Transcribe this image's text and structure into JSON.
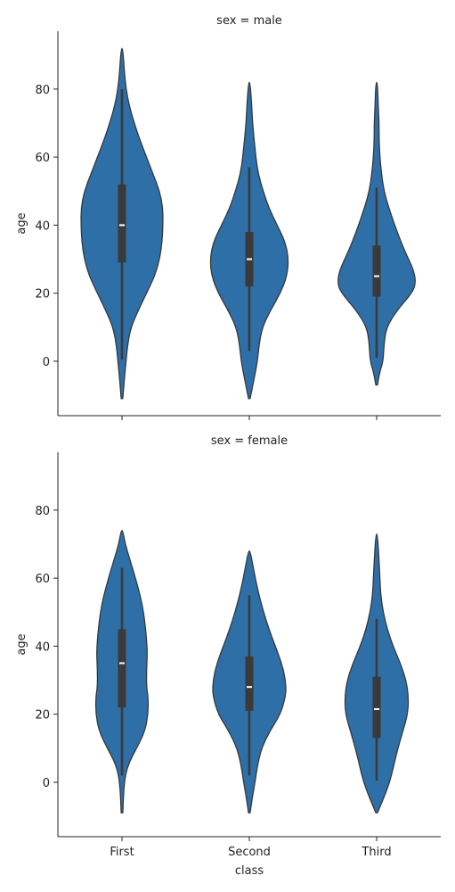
{
  "chart_data": {
    "type": "violin",
    "layout": "2 rows, shared x-axis",
    "categories": [
      "First",
      "Second",
      "Third"
    ],
    "xlabel": "class",
    "ylabel": "age",
    "yticks": [
      0,
      20,
      40,
      60,
      80
    ],
    "ylim": [
      -16,
      97
    ],
    "violin_color": "#2e6fa8",
    "edge_color": "#333333",
    "box_color": "#3a3a3a",
    "median_color": "#ffffff",
    "panels": [
      {
        "title": "sex = male",
        "violins": [
          {
            "category": "First",
            "min": -11,
            "max": 92,
            "q1": 29,
            "median": 40,
            "q3": 52,
            "whisker_low": 0.5,
            "whisker_high": 80,
            "profile": [
              [
                -11,
                0.01
              ],
              [
                -5,
                0.03
              ],
              [
                0,
                0.05
              ],
              [
                5,
                0.07
              ],
              [
                10,
                0.11
              ],
              [
                15,
                0.2
              ],
              [
                20,
                0.3
              ],
              [
                25,
                0.4
              ],
              [
                30,
                0.46
              ],
              [
                35,
                0.49
              ],
              [
                40,
                0.5
              ],
              [
                45,
                0.5
              ],
              [
                50,
                0.46
              ],
              [
                55,
                0.38
              ],
              [
                60,
                0.3
              ],
              [
                65,
                0.22
              ],
              [
                70,
                0.15
              ],
              [
                75,
                0.09
              ],
              [
                80,
                0.05
              ],
              [
                85,
                0.03
              ],
              [
                92,
                0.01
              ]
            ]
          },
          {
            "category": "Second",
            "min": -11,
            "max": 82,
            "q1": 22,
            "median": 30,
            "q3": 38,
            "whisker_low": 3,
            "whisker_high": 57,
            "profile": [
              [
                -11,
                0.01
              ],
              [
                -5,
                0.06
              ],
              [
                0,
                0.1
              ],
              [
                5,
                0.12
              ],
              [
                10,
                0.16
              ],
              [
                15,
                0.26
              ],
              [
                20,
                0.38
              ],
              [
                25,
                0.46
              ],
              [
                30,
                0.48
              ],
              [
                35,
                0.44
              ],
              [
                40,
                0.34
              ],
              [
                45,
                0.24
              ],
              [
                50,
                0.17
              ],
              [
                55,
                0.11
              ],
              [
                60,
                0.08
              ],
              [
                65,
                0.06
              ],
              [
                70,
                0.04
              ],
              [
                75,
                0.03
              ],
              [
                82,
                0.01
              ]
            ]
          },
          {
            "category": "Third",
            "min": -7,
            "max": 82,
            "q1": 19,
            "median": 25,
            "q3": 34,
            "whisker_low": 1,
            "whisker_high": 51,
            "profile": [
              [
                -7,
                0.01
              ],
              [
                -3,
                0.04
              ],
              [
                0,
                0.08
              ],
              [
                5,
                0.09
              ],
              [
                10,
                0.12
              ],
              [
                15,
                0.25
              ],
              [
                20,
                0.43
              ],
              [
                23,
                0.48
              ],
              [
                27,
                0.45
              ],
              [
                32,
                0.35
              ],
              [
                38,
                0.25
              ],
              [
                45,
                0.15
              ],
              [
                50,
                0.09
              ],
              [
                55,
                0.06
              ],
              [
                60,
                0.04
              ],
              [
                65,
                0.03
              ],
              [
                70,
                0.03
              ],
              [
                75,
                0.02
              ],
              [
                82,
                0.01
              ]
            ]
          }
        ]
      },
      {
        "title": "sex = female",
        "violins": [
          {
            "category": "First",
            "min": -9,
            "max": 74,
            "q1": 22,
            "median": 35,
            "q3": 45,
            "whisker_low": 2,
            "whisker_high": 63,
            "profile": [
              [
                -9,
                0.01
              ],
              [
                -3,
                0.02
              ],
              [
                2,
                0.04
              ],
              [
                6,
                0.09
              ],
              [
                10,
                0.18
              ],
              [
                15,
                0.28
              ],
              [
                20,
                0.32
              ],
              [
                25,
                0.32
              ],
              [
                28,
                0.3
              ],
              [
                33,
                0.3
              ],
              [
                38,
                0.31
              ],
              [
                42,
                0.3
              ],
              [
                47,
                0.28
              ],
              [
                52,
                0.25
              ],
              [
                57,
                0.2
              ],
              [
                62,
                0.14
              ],
              [
                66,
                0.09
              ],
              [
                70,
                0.04
              ],
              [
                74,
                0.01
              ]
            ]
          },
          {
            "category": "Second",
            "min": -9,
            "max": 68,
            "q1": 21,
            "median": 28,
            "q3": 37,
            "whisker_low": 2,
            "whisker_high": 55,
            "profile": [
              [
                -9,
                0.01
              ],
              [
                -4,
                0.04
              ],
              [
                0,
                0.07
              ],
              [
                5,
                0.1
              ],
              [
                10,
                0.15
              ],
              [
                15,
                0.25
              ],
              [
                20,
                0.38
              ],
              [
                25,
                0.44
              ],
              [
                28,
                0.45
              ],
              [
                33,
                0.42
              ],
              [
                38,
                0.35
              ],
              [
                43,
                0.27
              ],
              [
                48,
                0.2
              ],
              [
                53,
                0.14
              ],
              [
                58,
                0.09
              ],
              [
                63,
                0.05
              ],
              [
                68,
                0.01
              ]
            ]
          },
          {
            "category": "Third",
            "min": -9,
            "max": 73,
            "q1": 13,
            "median": 21.5,
            "q3": 31,
            "whisker_low": 0.5,
            "whisker_high": 48,
            "profile": [
              [
                -9,
                0.01
              ],
              [
                -5,
                0.08
              ],
              [
                0,
                0.16
              ],
              [
                5,
                0.21
              ],
              [
                10,
                0.26
              ],
              [
                15,
                0.32
              ],
              [
                20,
                0.38
              ],
              [
                25,
                0.39
              ],
              [
                30,
                0.36
              ],
              [
                35,
                0.29
              ],
              [
                40,
                0.2
              ],
              [
                45,
                0.13
              ],
              [
                50,
                0.08
              ],
              [
                55,
                0.05
              ],
              [
                60,
                0.04
              ],
              [
                65,
                0.03
              ],
              [
                73,
                0.01
              ]
            ]
          }
        ]
      }
    ]
  }
}
